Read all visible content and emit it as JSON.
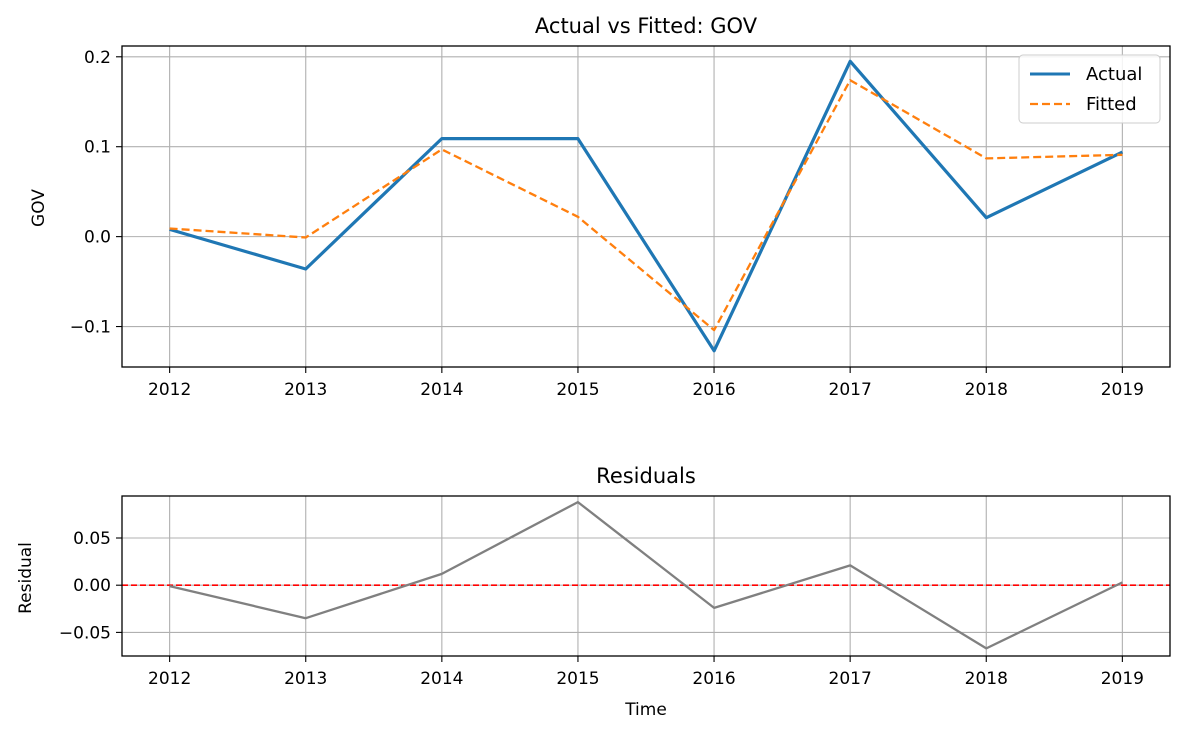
{
  "chart_data": [
    {
      "type": "line",
      "title": "Actual vs Fitted: GOV",
      "xlabel": "",
      "ylabel": "GOV",
      "x": [
        2012,
        2013,
        2014,
        2015,
        2016,
        2017,
        2018,
        2019
      ],
      "xlim": [
        2011.65,
        2019.35
      ],
      "ylim": [
        -0.145,
        0.212
      ],
      "yticks": [
        -0.1,
        0.0,
        0.1,
        0.2
      ],
      "ytick_labels": [
        "−0.1",
        "0.0",
        "0.1",
        "0.2"
      ],
      "xtick_labels": [
        "2012",
        "2013",
        "2014",
        "2015",
        "2016",
        "2017",
        "2018",
        "2019"
      ],
      "grid": true,
      "legend_position": "top-right",
      "series": [
        {
          "name": "Actual",
          "values": [
            0.008,
            -0.036,
            0.109,
            0.109,
            -0.127,
            0.195,
            0.021,
            0.094
          ],
          "color": "#1f77b4",
          "style": "solid"
        },
        {
          "name": "Fitted",
          "values": [
            0.009,
            -0.001,
            0.097,
            0.022,
            -0.104,
            0.174,
            0.087,
            0.091
          ],
          "color": "#ff7f0e",
          "style": "dashed"
        }
      ]
    },
    {
      "type": "line",
      "title": "Residuals",
      "xlabel": "Time",
      "ylabel": "Residual",
      "x": [
        2012,
        2013,
        2014,
        2015,
        2016,
        2017,
        2018,
        2019
      ],
      "xlim": [
        2011.65,
        2019.35
      ],
      "ylim": [
        -0.075,
        0.0945
      ],
      "yticks": [
        -0.05,
        0.0,
        0.05
      ],
      "ytick_labels": [
        "−0.05",
        "0.00",
        "0.05"
      ],
      "xtick_labels": [
        "2012",
        "2013",
        "2014",
        "2015",
        "2016",
        "2017",
        "2018",
        "2019"
      ],
      "grid": true,
      "reference_line": {
        "value": 0.0,
        "color": "#ff0000",
        "style": "dashed"
      },
      "series": [
        {
          "values": [
            -0.001,
            -0.035,
            0.012,
            0.088,
            -0.024,
            0.021,
            -0.067,
            0.003
          ],
          "color": "#808080",
          "style": "solid"
        }
      ]
    }
  ]
}
